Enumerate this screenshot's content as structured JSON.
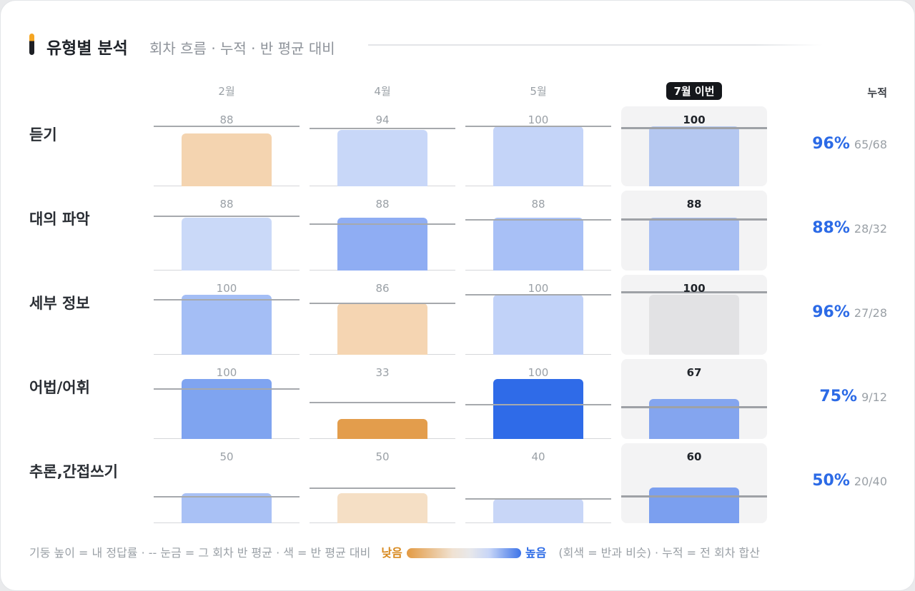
{
  "header": {
    "title": "유형별 분석",
    "subtitle": "회차 흐름 · 누적 · 반 평균 대비"
  },
  "columns": {
    "months": [
      "2월",
      "4월",
      "5월",
      "7월 이번"
    ],
    "cumulative_label": "누적"
  },
  "colors": {
    "low": "#e39a43",
    "high": "#2b6ae6",
    "neutral": "#e2e2e4",
    "current_bg": "#f3f3f4"
  },
  "chart_data": {
    "type": "bar",
    "categories": [
      "2월",
      "4월",
      "5월",
      "7월 이번"
    ],
    "ylim": [
      0,
      100
    ],
    "rows": [
      {
        "label": "듣기",
        "values": [
          88,
          94,
          100,
          100
        ],
        "class_avg": [
          100,
          97,
          100,
          97
        ],
        "colors": [
          "#f4d4b0",
          "#c8d7f8",
          "#c4d4f8",
          "#b5c8f1"
        ],
        "cumulative": {
          "pct": "96%",
          "frac": "65/68"
        }
      },
      {
        "label": "대의 파악",
        "values": [
          88,
          88,
          88,
          88
        ],
        "class_avg": [
          90,
          77,
          85,
          85
        ],
        "colors": [
          "#cad9f8",
          "#8fadf3",
          "#a8c0f6",
          "#a8bff3"
        ],
        "cumulative": {
          "pct": "88%",
          "frac": "28/32"
        }
      },
      {
        "label": "세부 정보",
        "values": [
          100,
          86,
          100,
          100
        ],
        "class_avg": [
          92,
          86,
          100,
          103
        ],
        "colors": [
          "#a4bef5",
          "#f5d5b2",
          "#c1d2f8",
          "#e2e2e4"
        ],
        "cumulative": {
          "pct": "96%",
          "frac": "27/28"
        }
      },
      {
        "label": "어법/어휘",
        "values": [
          100,
          33,
          100,
          67
        ],
        "class_avg": [
          83,
          61,
          57,
          52
        ],
        "colors": [
          "#7fa4f0",
          "#e39d4c",
          "#2f6be8",
          "#84a5ef"
        ],
        "cumulative": {
          "pct": "75%",
          "frac": "9/12"
        }
      },
      {
        "label": "추론,간접쓰기",
        "values": [
          50,
          50,
          40,
          60
        ],
        "class_avg": [
          44,
          58,
          40,
          44
        ],
        "colors": [
          "#a9c1f5",
          "#f5dfc5",
          "#c8d6f7",
          "#7b9fef"
        ],
        "cumulative": {
          "pct": "50%",
          "frac": "20/40"
        }
      }
    ]
  },
  "legend": {
    "explain": "기둥 높이 = 내 정답률 · -- 눈금 = 그 회차 반 평균 · 색 = 반 평균 대비",
    "low_label": "낮음",
    "high_label": "높음",
    "note": "(회색 = 반과 비슷) · 누적 = 전 회차 합산"
  }
}
